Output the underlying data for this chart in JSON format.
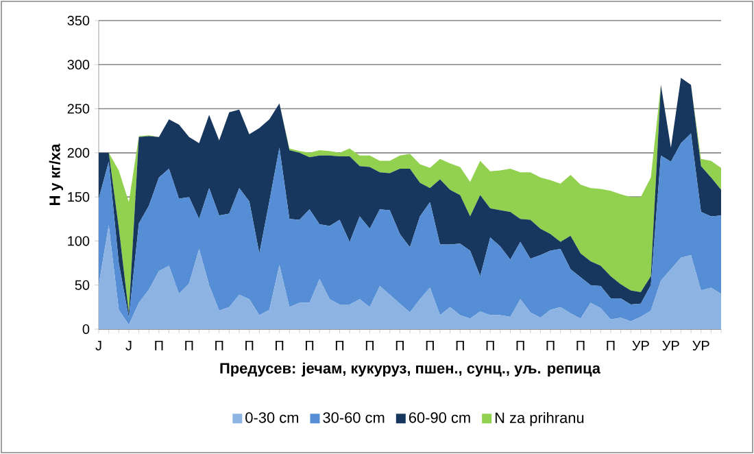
{
  "chart_data": {
    "type": "area",
    "stacked": true,
    "xlabel": "Предусев: јечам, кукуруз, пшен., сунц., уљ. репица",
    "ylabel": "Н у кг/ха",
    "categories": [
      "Ј",
      null,
      null,
      "Ј",
      null,
      null,
      "П",
      null,
      null,
      "П",
      null,
      null,
      "П",
      null,
      null,
      "П",
      null,
      null,
      "П",
      null,
      null,
      "П",
      null,
      null,
      "П",
      null,
      null,
      "П",
      null,
      null,
      "П",
      null,
      null,
      "П",
      null,
      null,
      "П",
      null,
      null,
      "П",
      null,
      null,
      "П",
      null,
      null,
      "П",
      null,
      null,
      "П",
      null,
      null,
      "П",
      null,
      null,
      "УР",
      null,
      null,
      "УР",
      null,
      null,
      "УР",
      null,
      null
    ],
    "ylim": [
      0,
      350
    ],
    "yticks": [
      0,
      50,
      100,
      150,
      200,
      250,
      300,
      350
    ],
    "grid": "y",
    "legend": "bottom",
    "series": [
      {
        "name": "0-30 cm",
        "color": "#8db3e2",
        "values": [
          50,
          118,
          22,
          5,
          30,
          45,
          66,
          72,
          40,
          52,
          91,
          50,
          21,
          25,
          39,
          34,
          16,
          22,
          73,
          25,
          30,
          30,
          57,
          34,
          28,
          28,
          34,
          25,
          49,
          39,
          29,
          19,
          34,
          47,
          16,
          25,
          16,
          12,
          20,
          16,
          16,
          14,
          34,
          19,
          13,
          22,
          25,
          18,
          12,
          30,
          24,
          11,
          13,
          9,
          14,
          21,
          55,
          68,
          81,
          84,
          44,
          47,
          40
        ]
      },
      {
        "name": "30-60 cm",
        "color": "#558ed5",
        "values": [
          98,
          72,
          53,
          8,
          90,
          95,
          106,
          110,
          108,
          98,
          34,
          110,
          108,
          106,
          121,
          111,
          70,
          123,
          133,
          100,
          94,
          106,
          62,
          83,
          96,
          71,
          94,
          89,
          87,
          96,
          79,
          74,
          94,
          97,
          80,
          71,
          81,
          77,
          40,
          88,
          78,
          65,
          65,
          61,
          71,
          67,
          66,
          50,
          47,
          20,
          25,
          24,
          22,
          19,
          15,
          29,
          142,
          122,
          130,
          138,
          89,
          81,
          89
        ]
      },
      {
        "name": "60-90 cm",
        "color": "#17375e",
        "values": [
          52,
          10,
          40,
          5,
          98,
          79,
          46,
          56,
          84,
          68,
          86,
          83,
          85,
          115,
          89,
          76,
          142,
          93,
          50,
          78,
          76,
          59,
          78,
          80,
          72,
          97,
          57,
          70,
          42,
          42,
          74,
          89,
          38,
          16,
          74,
          62,
          55,
          39,
          92,
          33,
          41,
          54,
          26,
          44,
          30,
          19,
          8,
          38,
          27,
          27,
          23,
          25,
          16,
          16,
          13,
          10,
          80,
          16,
          74,
          55,
          52,
          44,
          29
        ]
      },
      {
        "name": "N za prihranu",
        "color": "#92d050",
        "values": [
          0,
          0,
          65,
          126,
          1,
          1,
          0,
          0,
          0,
          0,
          0,
          0,
          0,
          0,
          0,
          0,
          0,
          0,
          0,
          2,
          2,
          5,
          6,
          5,
          4,
          9,
          12,
          13,
          13,
          14,
          15,
          17,
          21,
          23,
          23,
          30,
          32,
          39,
          39,
          42,
          45,
          49,
          53,
          54,
          58,
          61,
          66,
          69,
          78,
          83,
          87,
          97,
          102,
          106,
          108,
          112,
          0,
          0,
          0,
          0,
          8,
          19,
          25
        ]
      }
    ]
  }
}
